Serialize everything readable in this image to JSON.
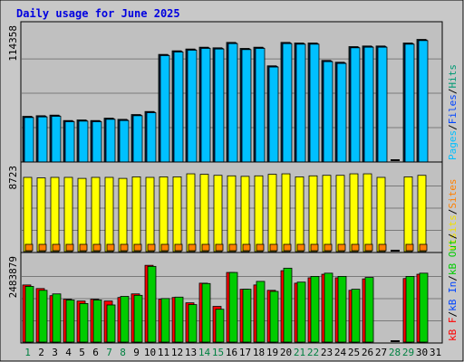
{
  "chart_data": {
    "type": "bar",
    "title": "Daily usage for June 2025",
    "categories": [
      "1",
      "2",
      "3",
      "4",
      "5",
      "6",
      "7",
      "8",
      "9",
      "10",
      "11",
      "12",
      "13",
      "14",
      "15",
      "16",
      "17",
      "18",
      "19",
      "20",
      "21",
      "22",
      "23",
      "24",
      "25",
      "26",
      "27",
      "28",
      "29",
      "30",
      "31"
    ],
    "weekend_days": [
      "1",
      "7",
      "8",
      "14",
      "15",
      "21",
      "22",
      "28",
      "29"
    ],
    "panels": [
      {
        "id": "hits",
        "ylabel_value": "114358",
        "ymax": 114358,
        "legend": [
          {
            "text": "Pages",
            "color": "#00c0ff"
          },
          {
            "text": "/",
            "color": "#000000"
          },
          {
            "text": "Files",
            "color": "#0044ff"
          },
          {
            "text": "/",
            "color": "#000000"
          },
          {
            "text": "Hits",
            "color": "#009a74"
          }
        ],
        "series": [
          {
            "name": "Hits",
            "color": "#008f90",
            "values": [
              38000,
              38500,
              39000,
              34500,
              35000,
              34500,
              36500,
              35500,
              39500,
              42000,
              89500,
              92500,
              94000,
              95500,
              95000,
              99500,
              94500,
              95500,
              80000,
              99500,
              99000,
              99000,
              84500,
              83000,
              96000,
              96500,
              96500,
              0,
              99000,
              102000,
              0
            ]
          },
          {
            "name": "Files",
            "color": "#0044ff",
            "values": [
              37500,
              38000,
              38500,
              34000,
              34500,
              34000,
              36000,
              35000,
              39000,
              41500,
              89000,
              92000,
              93500,
              95000,
              94500,
              99000,
              94000,
              95000,
              79500,
              99000,
              98500,
              98500,
              84000,
              82500,
              95500,
              96000,
              96000,
              0,
              98500,
              101500,
              0
            ]
          },
          {
            "name": "Pages",
            "color": "#00c0ff",
            "values": [
              37000,
              37500,
              38000,
              33500,
              34000,
              33500,
              35500,
              34500,
              38500,
              41000,
              88500,
              91500,
              93000,
              94500,
              94000,
              98500,
              93500,
              94500,
              79000,
              98500,
              98000,
              98000,
              83500,
              82000,
              95000,
              95500,
              95500,
              0,
              98000,
              101000,
              0
            ]
          }
        ]
      },
      {
        "id": "visits",
        "ylabel_value": "8723",
        "ymax": 8723,
        "legend": [
          {
            "text": "Visits",
            "color": "#f0e000"
          },
          {
            "text": "/",
            "color": "#000000"
          },
          {
            "text": "Sites",
            "color": "#ff8000"
          }
        ],
        "series": [
          {
            "name": "Visits",
            "color": "#ffff00",
            "values": [
              7300,
              7250,
              7300,
              7300,
              7200,
              7300,
              7300,
              7200,
              7350,
              7300,
              7350,
              7350,
              7650,
              7600,
              7500,
              7450,
              7400,
              7450,
              7600,
              7650,
              7350,
              7450,
              7500,
              7500,
              7650,
              7650,
              7300,
              0,
              7350,
              7500,
              0
            ]
          },
          {
            "name": "Sites",
            "color": "#ff8000",
            "values": [
              440,
              440,
              440,
              440,
              440,
              440,
              440,
              440,
              440,
              440,
              440,
              440,
              440,
              440,
              440,
              440,
              440,
              440,
              440,
              440,
              440,
              440,
              440,
              440,
              440,
              440,
              440,
              0,
              440,
              440,
              0
            ]
          }
        ]
      },
      {
        "id": "kbytes",
        "ylabel_value": "2483879",
        "ymax": 2483879,
        "legend": [
          {
            "text": "kB F",
            "color": "#ff0000"
          },
          {
            "text": "/",
            "color": "#000000"
          },
          {
            "text": "kB In",
            "color": "#0044ff"
          },
          {
            "text": "/",
            "color": "#000000"
          },
          {
            "text": "kB Out",
            "color": "#00cc00"
          },
          {
            "text": "/",
            "color": "#000000"
          }
        ],
        "series": [
          {
            "name": "kB F",
            "color": "#ff0000",
            "values": [
              1600000,
              1500000,
              1300000,
              1200000,
              1150000,
              1200000,
              1150000,
              1250000,
              1350000,
              2150000,
              1200000,
              1250000,
              1100000,
              1650000,
              1000000,
              1950000,
              1480000,
              1600000,
              1450000,
              2000000,
              1650000,
              1800000,
              1900000,
              1800000,
              1450000,
              1770000,
              0,
              0,
              1780000,
              1900000,
              0
            ]
          },
          {
            "name": "kB Out",
            "color": "#00cc00",
            "values": [
              1560000,
              1450000,
              1350000,
              1180000,
              1080000,
              1180000,
              1040000,
              1280000,
              1310000,
              2120000,
              1220000,
              1260000,
              1050000,
              1640000,
              920000,
              1950000,
              1480000,
              1700000,
              1420000,
              2070000,
              1680000,
              1840000,
              1930000,
              1840000,
              1480000,
              1810000,
              0,
              0,
              1840000,
              1930000,
              0
            ]
          }
        ]
      }
    ]
  }
}
